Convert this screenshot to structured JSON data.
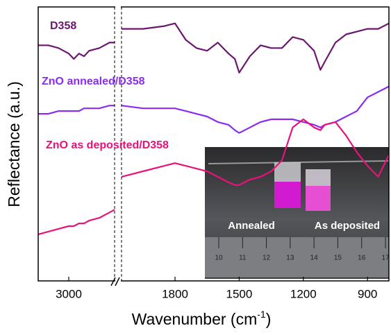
{
  "chart_data": {
    "type": "line",
    "x_label": "Wavenumber (cm",
    "x_label_sup": "-1",
    "x_label_end": ")",
    "y_label": "Reflectance (a.u.)",
    "xlim": [
      3300,
      800
    ],
    "xbreak": [
      2550,
      2050
    ],
    "xticks": [
      3000,
      1800,
      1500,
      1200,
      900
    ],
    "ylim": [
      0,
      100
    ],
    "x": [
      3300,
      3200,
      3100,
      3000,
      2950,
      2900,
      2850,
      2800,
      2700,
      2600,
      2550,
      2300,
      2050,
      1950,
      1850,
      1800,
      1750,
      1700,
      1650,
      1600,
      1550,
      1520,
      1500,
      1450,
      1400,
      1350,
      1300,
      1250,
      1200,
      1150,
      1120,
      1100,
      1050,
      1000,
      950,
      900,
      850,
      800
    ],
    "series": [
      {
        "name": "D358",
        "color": "#6b1670",
        "values": [
          86,
          86,
          85,
          83,
          81,
          83,
          82,
          84,
          85,
          87,
          87,
          null,
          92,
          92,
          93,
          94,
          88,
          85,
          84,
          87,
          83,
          81,
          76,
          82,
          86,
          85,
          85,
          89,
          88,
          84,
          77,
          80,
          87,
          90,
          91,
          92,
          92,
          94
        ]
      },
      {
        "name": "ZnO annealed/D358",
        "color": "#8a2cf0",
        "values": [
          61,
          61,
          62,
          62,
          62,
          62,
          63,
          63,
          63,
          64,
          64,
          null,
          64,
          63,
          63,
          63,
          62,
          61,
          60,
          58,
          57,
          55,
          54,
          56,
          58,
          59,
          59,
          59,
          58,
          57,
          56,
          57,
          58,
          60,
          62,
          67,
          69,
          71
        ]
      },
      {
        "name": "ZnO as deposited/D358",
        "color": "#e8127a",
        "values": [
          17,
          18,
          19,
          20,
          20,
          21,
          21,
          22,
          23,
          25,
          26,
          null,
          38,
          40,
          42,
          43,
          42,
          41,
          40,
          38,
          36,
          35,
          35,
          37,
          38,
          40,
          44,
          56,
          59,
          56,
          55,
          57,
          58,
          53,
          47,
          42,
          38,
          46
        ]
      }
    ],
    "inset": {
      "labels": [
        "Annealed",
        "As deposited"
      ],
      "ruler": [
        10,
        11,
        12,
        13,
        14,
        15,
        16,
        17
      ]
    }
  }
}
